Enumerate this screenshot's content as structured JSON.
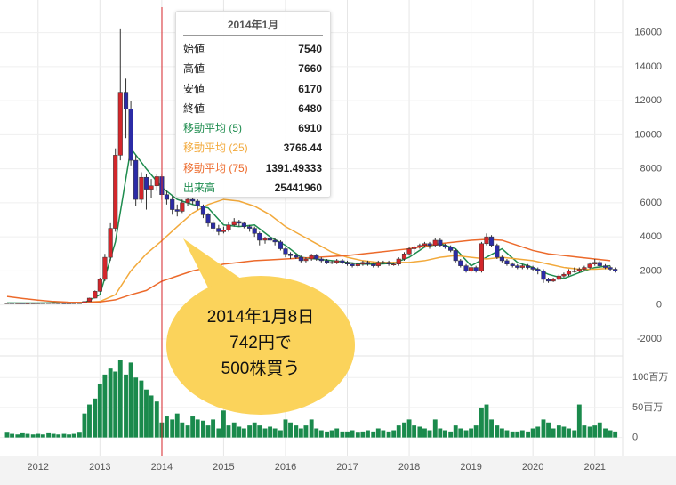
{
  "chart_data": {
    "type": "candlestick",
    "x": [
      2011.5,
      2011.58,
      2011.67,
      2011.75,
      2011.83,
      2011.92,
      2012.0,
      2012.08,
      2012.17,
      2012.25,
      2012.33,
      2012.42,
      2012.5,
      2012.58,
      2012.67,
      2012.75,
      2012.83,
      2012.92,
      2013.0,
      2013.08,
      2013.17,
      2013.25,
      2013.33,
      2013.42,
      2013.5,
      2013.58,
      2013.67,
      2013.75,
      2013.83,
      2013.92,
      2014.0,
      2014.08,
      2014.17,
      2014.25,
      2014.33,
      2014.42,
      2014.5,
      2014.58,
      2014.67,
      2014.75,
      2014.83,
      2014.92,
      2015.0,
      2015.08,
      2015.17,
      2015.25,
      2015.33,
      2015.42,
      2015.5,
      2015.58,
      2015.67,
      2015.75,
      2015.83,
      2015.92,
      2016.0,
      2016.08,
      2016.17,
      2016.25,
      2016.33,
      2016.42,
      2016.5,
      2016.58,
      2016.67,
      2016.75,
      2016.83,
      2016.92,
      2017.0,
      2017.08,
      2017.17,
      2017.25,
      2017.33,
      2017.42,
      2017.5,
      2017.58,
      2017.67,
      2017.75,
      2017.83,
      2017.92,
      2018.0,
      2018.08,
      2018.17,
      2018.25,
      2018.33,
      2018.42,
      2018.5,
      2018.58,
      2018.67,
      2018.75,
      2018.83,
      2018.92,
      2019.0,
      2019.08,
      2019.17,
      2019.25,
      2019.33,
      2019.42,
      2019.5,
      2019.58,
      2019.67,
      2019.75,
      2019.83,
      2019.92,
      2020.0,
      2020.08,
      2020.17,
      2020.25,
      2020.33,
      2020.42,
      2020.5,
      2020.58,
      2020.67,
      2020.75,
      2020.83,
      2020.92,
      2021.0,
      2021.08,
      2021.17,
      2021.25,
      2021.33
    ],
    "ohlc": [
      [
        110,
        130,
        100,
        120
      ],
      [
        120,
        125,
        105,
        110
      ],
      [
        110,
        120,
        105,
        115
      ],
      [
        115,
        118,
        100,
        105
      ],
      [
        105,
        115,
        100,
        110
      ],
      [
        110,
        120,
        105,
        115
      ],
      [
        115,
        125,
        110,
        120
      ],
      [
        120,
        130,
        115,
        125
      ],
      [
        125,
        135,
        120,
        130
      ],
      [
        130,
        135,
        115,
        120
      ],
      [
        120,
        125,
        110,
        115
      ],
      [
        115,
        120,
        105,
        110
      ],
      [
        110,
        120,
        105,
        115
      ],
      [
        115,
        125,
        110,
        120
      ],
      [
        120,
        130,
        115,
        125
      ],
      [
        125,
        210,
        120,
        200
      ],
      [
        200,
        420,
        190,
        400
      ],
      [
        400,
        850,
        380,
        800
      ],
      [
        800,
        1600,
        750,
        1500
      ],
      [
        1500,
        3000,
        1400,
        2800
      ],
      [
        2800,
        4800,
        2600,
        4500
      ],
      [
        4500,
        9200,
        4300,
        8800
      ],
      [
        8800,
        16200,
        8500,
        12500
      ],
      [
        12500,
        13300,
        9800,
        11500
      ],
      [
        11500,
        12000,
        8200,
        8500
      ],
      [
        8500,
        8800,
        5800,
        6200
      ],
      [
        6200,
        7800,
        6000,
        7500
      ],
      [
        7500,
        7700,
        5600,
        6800
      ],
      [
        6800,
        7400,
        6300,
        7000
      ],
      [
        7000,
        7700,
        6700,
        7540
      ],
      [
        7540,
        7660,
        6170,
        6480
      ],
      [
        6480,
        6700,
        5900,
        6200
      ],
      [
        6200,
        6400,
        5300,
        5600
      ],
      [
        5600,
        5900,
        5200,
        5500
      ],
      [
        5500,
        6200,
        5400,
        6000
      ],
      [
        6000,
        6400,
        5800,
        6200
      ],
      [
        6200,
        6300,
        5900,
        6100
      ],
      [
        6100,
        6200,
        5600,
        5800
      ],
      [
        5800,
        5900,
        5100,
        5300
      ],
      [
        5300,
        5400,
        4600,
        4800
      ],
      [
        4800,
        5000,
        4300,
        4500
      ],
      [
        4500,
        4700,
        4100,
        4300
      ],
      [
        4300,
        4600,
        4200,
        4400
      ],
      [
        4400,
        4900,
        4300,
        4700
      ],
      [
        4700,
        5100,
        4600,
        4900
      ],
      [
        4900,
        5000,
        4600,
        4800
      ],
      [
        4800,
        4900,
        4500,
        4600
      ],
      [
        4600,
        4700,
        4300,
        4500
      ],
      [
        4500,
        4600,
        4000,
        4200
      ],
      [
        4200,
        4300,
        3500,
        3800
      ],
      [
        3800,
        4000,
        3600,
        3900
      ],
      [
        3900,
        4000,
        3700,
        3800
      ],
      [
        3800,
        3900,
        3500,
        3700
      ],
      [
        3700,
        3800,
        3200,
        3300
      ],
      [
        3300,
        3400,
        2800,
        3000
      ],
      [
        3000,
        3100,
        2700,
        2900
      ],
      [
        2900,
        3000,
        2700,
        2800
      ],
      [
        2800,
        2900,
        2500,
        2600
      ],
      [
        2600,
        2800,
        2500,
        2700
      ],
      [
        2700,
        3000,
        2600,
        2900
      ],
      [
        2900,
        3000,
        2600,
        2700
      ],
      [
        2700,
        2800,
        2500,
        2600
      ],
      [
        2600,
        2700,
        2400,
        2500
      ],
      [
        2500,
        2600,
        2400,
        2500
      ],
      [
        2500,
        2700,
        2400,
        2600
      ],
      [
        2600,
        2700,
        2400,
        2500
      ],
      [
        2500,
        2600,
        2300,
        2400
      ],
      [
        2400,
        2500,
        2200,
        2300
      ],
      [
        2300,
        2500,
        2200,
        2400
      ],
      [
        2400,
        2600,
        2300,
        2500
      ],
      [
        2500,
        2600,
        2300,
        2400
      ],
      [
        2400,
        2500,
        2200,
        2300
      ],
      [
        2300,
        2600,
        2200,
        2500
      ],
      [
        2500,
        2600,
        2400,
        2500
      ],
      [
        2500,
        2600,
        2300,
        2400
      ],
      [
        2400,
        2500,
        2300,
        2400
      ],
      [
        2400,
        2800,
        2300,
        2700
      ],
      [
        2700,
        3100,
        2600,
        3000
      ],
      [
        3000,
        3400,
        2900,
        3300
      ],
      [
        3300,
        3500,
        3100,
        3400
      ],
      [
        3400,
        3600,
        3300,
        3500
      ],
      [
        3500,
        3700,
        3400,
        3600
      ],
      [
        3600,
        3700,
        3300,
        3500
      ],
      [
        3500,
        3950,
        3400,
        3800
      ],
      [
        3800,
        3900,
        3400,
        3500
      ],
      [
        3500,
        3600,
        3300,
        3400
      ],
      [
        3400,
        3500,
        3100,
        3200
      ],
      [
        3200,
        3300,
        2500,
        2600
      ],
      [
        2600,
        2700,
        2200,
        2300
      ],
      [
        2300,
        2400,
        1900,
        2000
      ],
      [
        2000,
        2300,
        1900,
        2200
      ],
      [
        2200,
        2300,
        1900,
        2000
      ],
      [
        2000,
        3700,
        1900,
        3600
      ],
      [
        3600,
        4200,
        3500,
        4000
      ],
      [
        4000,
        4100,
        3400,
        3500
      ],
      [
        3500,
        3600,
        2700,
        2800
      ],
      [
        2800,
        2900,
        2500,
        2600
      ],
      [
        2600,
        2700,
        2300,
        2400
      ],
      [
        2400,
        2500,
        2200,
        2300
      ],
      [
        2300,
        2400,
        2100,
        2200
      ],
      [
        2200,
        2400,
        2100,
        2300
      ],
      [
        2300,
        2400,
        2100,
        2200
      ],
      [
        2200,
        2300,
        2000,
        2100
      ],
      [
        2100,
        2200,
        1800,
        2000
      ],
      [
        2000,
        2100,
        1300,
        1500
      ],
      [
        1500,
        1600,
        1300,
        1400
      ],
      [
        1400,
        1600,
        1350,
        1500
      ],
      [
        1500,
        1800,
        1450,
        1700
      ],
      [
        1700,
        1900,
        1600,
        1800
      ],
      [
        1800,
        2100,
        1700,
        2000
      ],
      [
        2000,
        2200,
        1900,
        2000
      ],
      [
        2000,
        2200,
        1900,
        2100
      ],
      [
        2100,
        2300,
        2000,
        2200
      ],
      [
        2200,
        2500,
        2100,
        2400
      ],
      [
        2400,
        2700,
        2300,
        2500
      ],
      [
        2500,
        2600,
        2200,
        2300
      ],
      [
        2300,
        2400,
        2100,
        2200
      ],
      [
        2200,
        2300,
        2000,
        2100
      ],
      [
        2100,
        2200,
        1900,
        2000
      ]
    ],
    "colors": {
      "up": "#d3262b",
      "down": "#2b2ba6"
    },
    "moving_averages": {
      "x": [
        2011.5,
        2011.75,
        2012,
        2012.25,
        2012.5,
        2012.75,
        2013,
        2013.25,
        2013.5,
        2013.75,
        2014,
        2014.25,
        2014.5,
        2014.75,
        2015,
        2015.25,
        2015.5,
        2015.75,
        2016,
        2016.25,
        2016.5,
        2016.75,
        2017,
        2017.25,
        2017.5,
        2017.75,
        2018,
        2018.25,
        2018.5,
        2018.75,
        2019,
        2019.25,
        2019.5,
        2019.75,
        2020,
        2020.25,
        2020.5,
        2020.75,
        2021,
        2021.25
      ],
      "series": [
        {
          "color": "#1e8c4e",
          "values": [
            120,
            115,
            115,
            125,
            120,
            130,
            600,
            3700,
            9200,
            8000,
            6910,
            6200,
            5900,
            5700,
            4700,
            4600,
            4700,
            4000,
            3500,
            2800,
            2700,
            2600,
            2500,
            2400,
            2400,
            2450,
            2800,
            3400,
            3600,
            3300,
            2300,
            2800,
            3300,
            2500,
            2200,
            1800,
            1550,
            1900,
            2200,
            2300
          ]
        },
        {
          "color": "#f2a93b",
          "values": [
            null,
            null,
            null,
            null,
            null,
            150,
            200,
            600,
            2000,
            3000,
            3766.44,
            4600,
            5400,
            5900,
            6200,
            6100,
            5800,
            5300,
            4600,
            4100,
            3600,
            3100,
            2800,
            2600,
            2500,
            2500,
            2500,
            2600,
            2800,
            2900,
            2800,
            2700,
            2800,
            2700,
            2600,
            2400,
            2200,
            2100,
            2100,
            2150
          ]
        },
        {
          "color": "#ec6a2b",
          "values": [
            500,
            380,
            280,
            200,
            160,
            150,
            180,
            300,
            600,
            850,
            1391.49333,
            1700,
            2000,
            2200,
            2400,
            2500,
            2600,
            2650,
            2700,
            2750,
            2800,
            2850,
            2900,
            3000,
            3100,
            3200,
            3300,
            3450,
            3600,
            3700,
            3800,
            3850,
            3800,
            3500,
            3200,
            3000,
            2900,
            2800,
            2700,
            2600
          ]
        }
      ]
    },
    "xlim": [
      2011.5,
      2021.45
    ],
    "xticks": [
      2012,
      2013,
      2014,
      2015,
      2016,
      2017,
      2018,
      2019,
      2020,
      2021
    ],
    "ylim": [
      -3000,
      17500
    ],
    "yticks": [
      16000,
      14000,
      12000,
      10000,
      8000,
      6000,
      4000,
      2000,
      0,
      -2000
    ],
    "grid": true,
    "volume": {
      "color": "#1a8a4c",
      "values": [
        8,
        6,
        5,
        7,
        6,
        5,
        6,
        5,
        7,
        6,
        5,
        6,
        5,
        6,
        8,
        40,
        55,
        65,
        90,
        105,
        115,
        110,
        130,
        105,
        125,
        100,
        95,
        80,
        70,
        60,
        25,
        35,
        30,
        40,
        25,
        20,
        35,
        30,
        28,
        20,
        30,
        15,
        45,
        20,
        25,
        18,
        15,
        20,
        25,
        20,
        15,
        18,
        15,
        12,
        30,
        25,
        20,
        15,
        20,
        30,
        15,
        12,
        10,
        12,
        15,
        10,
        10,
        12,
        8,
        10,
        12,
        10,
        15,
        12,
        10,
        12,
        20,
        25,
        30,
        20,
        18,
        15,
        12,
        30,
        15,
        12,
        10,
        20,
        15,
        12,
        15,
        20,
        50,
        55,
        30,
        20,
        15,
        12,
        10,
        10,
        12,
        10,
        15,
        18,
        30,
        25,
        15,
        20,
        18,
        15,
        12,
        55,
        20,
        18,
        20,
        25,
        15,
        12,
        10
      ],
      "ylim": [
        -8,
        136
      ],
      "yticks": [
        {
          "value": 100,
          "label": "100百万"
        },
        {
          "value": 50,
          "label": "50百万"
        },
        0
      ]
    }
  },
  "tooltip": {
    "title": "2014年1月",
    "rows": [
      {
        "label": "始値",
        "value": 7540
      },
      {
        "label": "高値",
        "value": 7660
      },
      {
        "label": "安値",
        "value": 6170
      },
      {
        "label": "終値",
        "value": 6480
      },
      {
        "label": "移動平均 (5)",
        "value": 6910,
        "color": "#1e8c4e"
      },
      {
        "label": "移動平均 (25)",
        "value": 3766.44,
        "color": "#f2a93b"
      },
      {
        "label": "移動平均 (75)",
        "value": 1391.49333,
        "color": "#ec6a2b"
      },
      {
        "label": "出来高",
        "value": 25441960,
        "color": "#1a8a4c"
      }
    ]
  },
  "annotation": {
    "lines": [
      "2014年1月8日",
      "742円で",
      "500株買う"
    ]
  }
}
